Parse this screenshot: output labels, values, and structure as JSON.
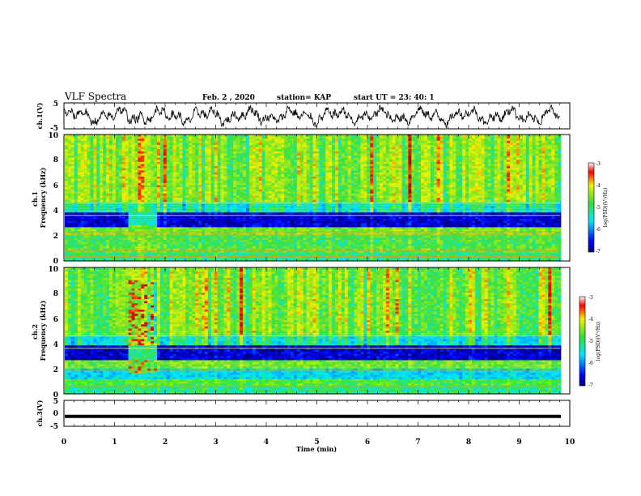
{
  "header": {
    "title": "VLF Spectra",
    "date": "Feb. 2 , 2020",
    "station": "station= KAP",
    "start": "start  UT =  23: 40: 1"
  },
  "chart_data": [
    {
      "id": "ch1-waveform",
      "type": "line",
      "ylabel": "ch.1(V)",
      "ylim": [
        -5,
        5
      ],
      "yticks": [
        "5",
        "-5"
      ],
      "xlim": [
        0,
        10
      ]
    },
    {
      "id": "ch1-spectrogram",
      "type": "heatmap",
      "ylabel": "ch.1\nFrequency (kHz)",
      "ylim": [
        0,
        10
      ],
      "yticks": [
        "0",
        "2",
        "4",
        "6",
        "8",
        "10"
      ],
      "xlim": [
        0,
        10
      ],
      "colorbar": {
        "label": "log(PSD)(V²/Hz)",
        "range": [
          -7,
          -3
        ],
        "ticks": [
          "-3",
          "-4",
          "-5",
          "-6",
          "-7"
        ]
      }
    },
    {
      "id": "ch2-spectrogram",
      "type": "heatmap",
      "ylabel": "ch.2\nFrequency (kHz)",
      "ylim": [
        0,
        10
      ],
      "yticks": [
        "0",
        "2",
        "4",
        "6",
        "8",
        "10"
      ],
      "xlim": [
        0,
        10
      ],
      "colorbar": {
        "label": "log(PSD)(V²/Hz)",
        "range": [
          -7,
          -3
        ],
        "ticks": [
          "-3",
          "-4",
          "-5",
          "-6",
          "-7"
        ]
      }
    },
    {
      "id": "ch3-waveform",
      "type": "line",
      "ylabel": "ch.3(V)",
      "ylim": [
        -5,
        5
      ],
      "yticks": [
        "5",
        "0",
        "-5"
      ],
      "xlim": [
        0,
        10
      ],
      "level": -1.2
    }
  ],
  "xaxis": {
    "label": "Time (min)",
    "ticks": [
      "0",
      "1",
      "2",
      "3",
      "4",
      "5",
      "6",
      "7",
      "8",
      "9",
      "10"
    ]
  },
  "colors": {
    "min": "#000080",
    "blue": "#0000ff",
    "cyan": "#00e5ff",
    "green": "#33e033",
    "yellow": "#f0f000",
    "red": "#ff0000",
    "max": "#b00000"
  }
}
